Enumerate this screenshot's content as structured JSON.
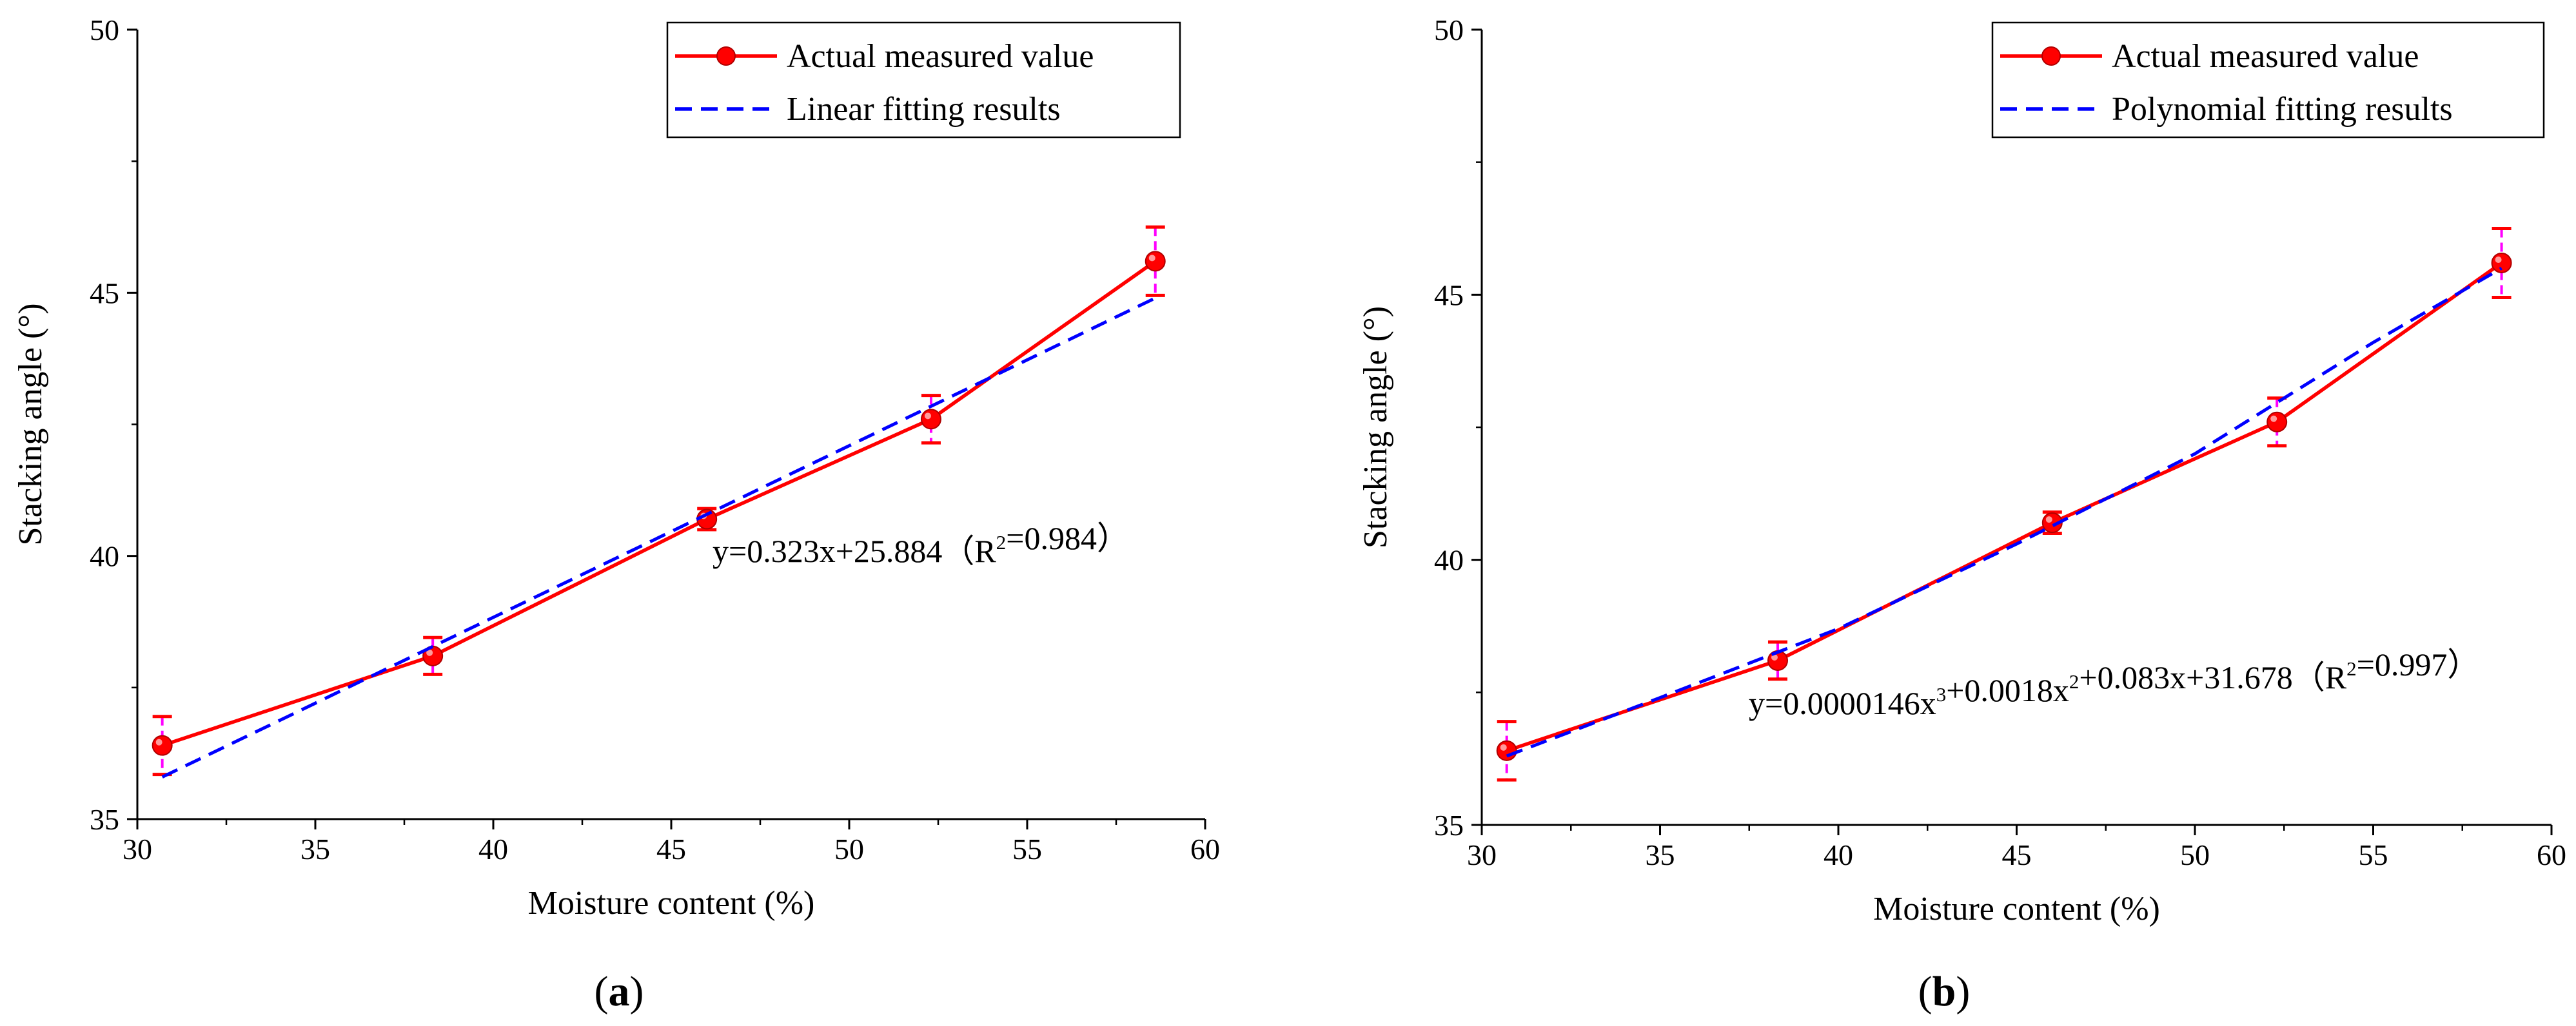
{
  "chart_data": [
    {
      "type": "line",
      "panel_label": "(a)",
      "xlabel": "Moisture content (%)",
      "ylabel": "Stacking angle (°)",
      "xlim": [
        30,
        60
      ],
      "ylim": [
        35,
        50
      ],
      "x_ticks": [
        30,
        35,
        40,
        45,
        50,
        55,
        60
      ],
      "y_ticks": [
        35,
        40,
        45,
        50
      ],
      "grid": false,
      "legend_placement": "top-right",
      "series": [
        {
          "name": "Actual measured value",
          "style": "solid-with-markers",
          "color": "#ff0000",
          "x": [
            30.7,
            38.3,
            46.0,
            52.3,
            58.6
          ],
          "y": [
            36.4,
            38.1,
            40.7,
            42.6,
            45.6
          ],
          "error": [
            0.55,
            0.35,
            0.2,
            0.45,
            0.65
          ]
        },
        {
          "name": "Linear fitting results",
          "style": "dashed",
          "color": "#0000ff",
          "x": [
            30.7,
            58.6
          ],
          "y": [
            35.8,
            44.9
          ]
        }
      ],
      "annotation": {
        "prefix": "y=0.323x+25.884（R",
        "sup": "2",
        "suffix": "=0.984）",
        "at": [
          46.0,
          40.0
        ]
      }
    },
    {
      "type": "line",
      "panel_label": "(b)",
      "xlabel": "Moisture content (%)",
      "ylabel": "Stacking angle (°)",
      "xlim": [
        30,
        60
      ],
      "ylim": [
        35,
        50
      ],
      "x_ticks": [
        30,
        35,
        40,
        45,
        50,
        55,
        60
      ],
      "y_ticks": [
        35,
        40,
        45,
        50
      ],
      "grid": false,
      "legend_placement": "top-right",
      "series": [
        {
          "name": "Actual measured value",
          "style": "solid-with-markers",
          "color": "#ff0000",
          "x": [
            30.7,
            38.3,
            46.0,
            52.3,
            58.6
          ],
          "y": [
            36.4,
            38.1,
            40.7,
            42.6,
            45.6
          ],
          "error": [
            0.55,
            0.35,
            0.2,
            0.45,
            0.65
          ]
        },
        {
          "name": "Polynomial fitting results",
          "style": "dashed",
          "color": "#0000ff",
          "x": [
            30.7,
            35,
            40,
            45,
            50,
            55,
            58.6
          ],
          "y": [
            36.3,
            37.4,
            38.7,
            40.3,
            42.0,
            44.1,
            45.5
          ]
        }
      ],
      "annotation": {
        "prefix": "y=0.0000146x",
        "sup": "3",
        "mid": "+0.0018x",
        "sup2": "2",
        "mid2": "+0.083x+31.678（R",
        "sup3": "2",
        "suffix": "=0.997）",
        "at": [
          38.4,
          37.4
        ]
      }
    }
  ]
}
